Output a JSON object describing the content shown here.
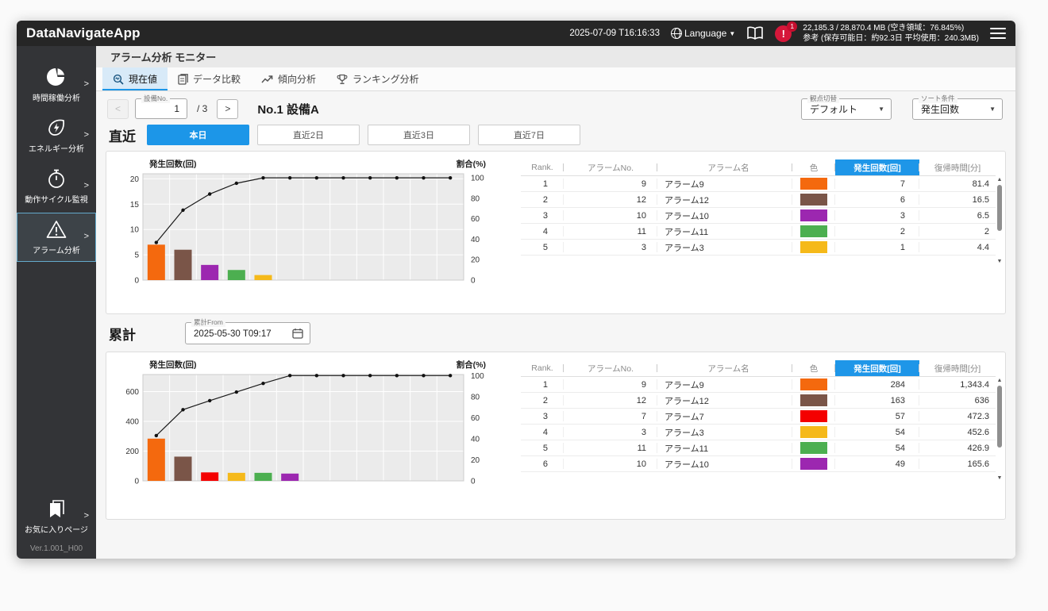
{
  "window": {
    "app_title": "DataNavigateApp",
    "header": {
      "timestamp": "2025-07-09 T16:16:33",
      "language_label": "Language",
      "alert_mark": "!",
      "alert_count": "1",
      "memory_line1": "22,185.3 / 28,870.4 MB (空き領域：76.845%)",
      "memory_line2": "参考 (保存可能日：約92.3日 平均使用：240.3MB)"
    }
  },
  "icons": {
    "chevron_right": ">",
    "prev": "<",
    "next": ">",
    "caret_down": "▼",
    "scroll_up": "▲",
    "scroll_down": "▼"
  },
  "sidebar": {
    "items": [
      {
        "label": "時間稼働分析",
        "icon": "pie-chart-icon",
        "active": false
      },
      {
        "label": "エネルギー分析",
        "icon": "energy-icon",
        "active": false
      },
      {
        "label": "動作サイクル監視",
        "icon": "stopwatch-icon",
        "active": false
      },
      {
        "label": "アラーム分析",
        "icon": "warning-triangle-icon",
        "active": true
      }
    ],
    "favorites_label": "お気に入りページ",
    "favorites_icon": "bookmark-icon",
    "version": "Ver.1.001_H00"
  },
  "page": {
    "title": "アラーム分析 モニター",
    "tabs": [
      {
        "label": "現在値",
        "icon": "monitor-search-icon",
        "active": true
      },
      {
        "label": "データ比較",
        "icon": "document-compare-icon",
        "active": false
      },
      {
        "label": "傾向分析",
        "icon": "trend-line-icon",
        "active": false
      },
      {
        "label": "ランキング分析",
        "icon": "trophy-icon",
        "active": false
      }
    ],
    "equipment": {
      "field_label": "設備No.",
      "value": "1",
      "total": "/ 3",
      "title": "No.1 設備A"
    },
    "view_select": {
      "label": "観点切替",
      "value": "デフォルト"
    },
    "sort_select": {
      "label": "ソート条件",
      "value": "発生回数"
    }
  },
  "recent": {
    "heading": "直近",
    "buttons": [
      {
        "label": "本日",
        "active": true
      },
      {
        "label": "直近2日",
        "active": false
      },
      {
        "label": "直近3日",
        "active": false
      },
      {
        "label": "直近7日",
        "active": false
      }
    ]
  },
  "cumulative": {
    "heading": "累計",
    "from_label": "累計From",
    "from_value": "2025-05-30 T09:17"
  },
  "tables": {
    "headers": [
      "Rank.",
      "アラームNo.",
      "アラーム名",
      "色",
      "発生回数[回]",
      "復帰時間[分]"
    ]
  },
  "recent_table": {
    "rows": [
      {
        "rank": "1",
        "no": "9",
        "name": "アラーム9",
        "color": "#F4690E",
        "count": "7",
        "recovery": "81.4"
      },
      {
        "rank": "2",
        "no": "12",
        "name": "アラーム12",
        "color": "#7A5548",
        "count": "6",
        "recovery": "16.5"
      },
      {
        "rank": "3",
        "no": "10",
        "name": "アラーム10",
        "color": "#9C27B0",
        "count": "3",
        "recovery": "6.5"
      },
      {
        "rank": "4",
        "no": "11",
        "name": "アラーム11",
        "color": "#4CAF50",
        "count": "2",
        "recovery": "2"
      },
      {
        "rank": "5",
        "no": "3",
        "name": "アラーム3",
        "color": "#F5B91A",
        "count": "1",
        "recovery": "4.4"
      }
    ]
  },
  "cumulative_table": {
    "rows": [
      {
        "rank": "1",
        "no": "9",
        "name": "アラーム9",
        "color": "#F4690E",
        "count": "284",
        "recovery": "1,343.4"
      },
      {
        "rank": "2",
        "no": "12",
        "name": "アラーム12",
        "color": "#7A5548",
        "count": "163",
        "recovery": "636"
      },
      {
        "rank": "3",
        "no": "7",
        "name": "アラーム7",
        "color": "#F40000",
        "count": "57",
        "recovery": "472.3"
      },
      {
        "rank": "4",
        "no": "3",
        "name": "アラーム3",
        "color": "#F5B91A",
        "count": "54",
        "recovery": "452.6"
      },
      {
        "rank": "5",
        "no": "11",
        "name": "アラーム11",
        "color": "#4CAF50",
        "count": "54",
        "recovery": "426.9"
      },
      {
        "rank": "6",
        "no": "10",
        "name": "アラーム10",
        "color": "#9C27B0",
        "count": "49",
        "recovery": "165.6"
      }
    ]
  },
  "chart_data": [
    {
      "type": "bar+line (pareto)",
      "section": "直近 (本日)",
      "ylabel_left": "発生回数(回)",
      "ylabel_right": "割合(%)",
      "slots": 12,
      "left_ticks": [
        0,
        5,
        10,
        15,
        20
      ],
      "left_max": 21,
      "right_ticks": [
        0,
        20,
        40,
        60,
        80,
        100
      ],
      "right_max": 104,
      "bars": [
        {
          "value": 7,
          "color": "#F4690E"
        },
        {
          "value": 6,
          "color": "#7A5548"
        },
        {
          "value": 3,
          "color": "#9C27B0"
        },
        {
          "value": 2,
          "color": "#4CAF50"
        },
        {
          "value": 1,
          "color": "#F5B91A"
        }
      ],
      "cumulative_pct": [
        36.8,
        68.4,
        84.2,
        94.7,
        100,
        100,
        100,
        100,
        100,
        100,
        100,
        100
      ]
    },
    {
      "type": "bar+line (pareto)",
      "section": "累計",
      "ylabel_left": "発生回数(回)",
      "ylabel_right": "割合(%)",
      "slots": 12,
      "left_ticks": [
        0,
        200,
        400,
        600
      ],
      "left_max": 715,
      "right_ticks": [
        0,
        20,
        40,
        60,
        80,
        100
      ],
      "right_max": 101,
      "bars": [
        {
          "value": 284,
          "color": "#F4690E"
        },
        {
          "value": 163,
          "color": "#7A5548"
        },
        {
          "value": 57,
          "color": "#F40000"
        },
        {
          "value": 54,
          "color": "#F5B91A"
        },
        {
          "value": 54,
          "color": "#4CAF50"
        },
        {
          "value": 49,
          "color": "#9C27B0"
        }
      ],
      "cumulative_pct": [
        43.0,
        67.6,
        76.2,
        84.4,
        92.6,
        100,
        100,
        100,
        100,
        100,
        100,
        100
      ]
    }
  ],
  "colors": {
    "accent_blue": "#1C96E8",
    "alert_red": "#D6173A",
    "titlebar_bg": "#262626",
    "sidebar_bg": "#333437",
    "chart_plot_bg": "#EBEBEB"
  }
}
